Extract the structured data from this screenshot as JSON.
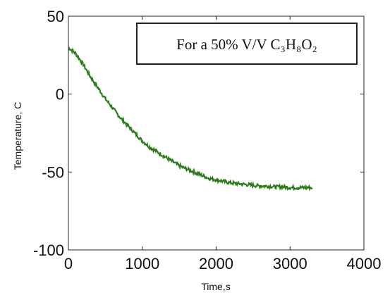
{
  "chart_data": {
    "type": "line",
    "title": "",
    "xlabel": "Time,s",
    "ylabel": "Temperature, C",
    "xlim": [
      0,
      4000
    ],
    "ylim": [
      -100,
      50
    ],
    "xticks": [
      "0",
      "1000",
      "2000",
      "3000",
      "4000"
    ],
    "yticks": [
      "50",
      "0",
      "-50",
      "-100"
    ],
    "grid": false,
    "legend": {
      "placement": "top-right",
      "text": "For a 50% V/V C₃H₈O₂"
    },
    "series": [
      {
        "color": "#2e7d1e",
        "x": [
          0,
          100,
          200,
          300,
          400,
          500,
          600,
          700,
          800,
          900,
          1000,
          1100,
          1200,
          1300,
          1400,
          1500,
          1600,
          1700,
          1800,
          1900,
          2000,
          2100,
          2200,
          2300,
          2400,
          2500,
          2600,
          2700,
          2800,
          2900,
          3000,
          3100,
          3200,
          3300
        ],
        "y": [
          30,
          26,
          19,
          11,
          4,
          -3,
          -9,
          -15,
          -20,
          -25,
          -30,
          -34,
          -37,
          -40,
          -43,
          -46,
          -48,
          -50,
          -52,
          -54,
          -55,
          -56,
          -57,
          -57.5,
          -58,
          -58.5,
          -59,
          -59,
          -59.5,
          -59.5,
          -60,
          -60,
          -60,
          -60
        ]
      }
    ]
  }
}
